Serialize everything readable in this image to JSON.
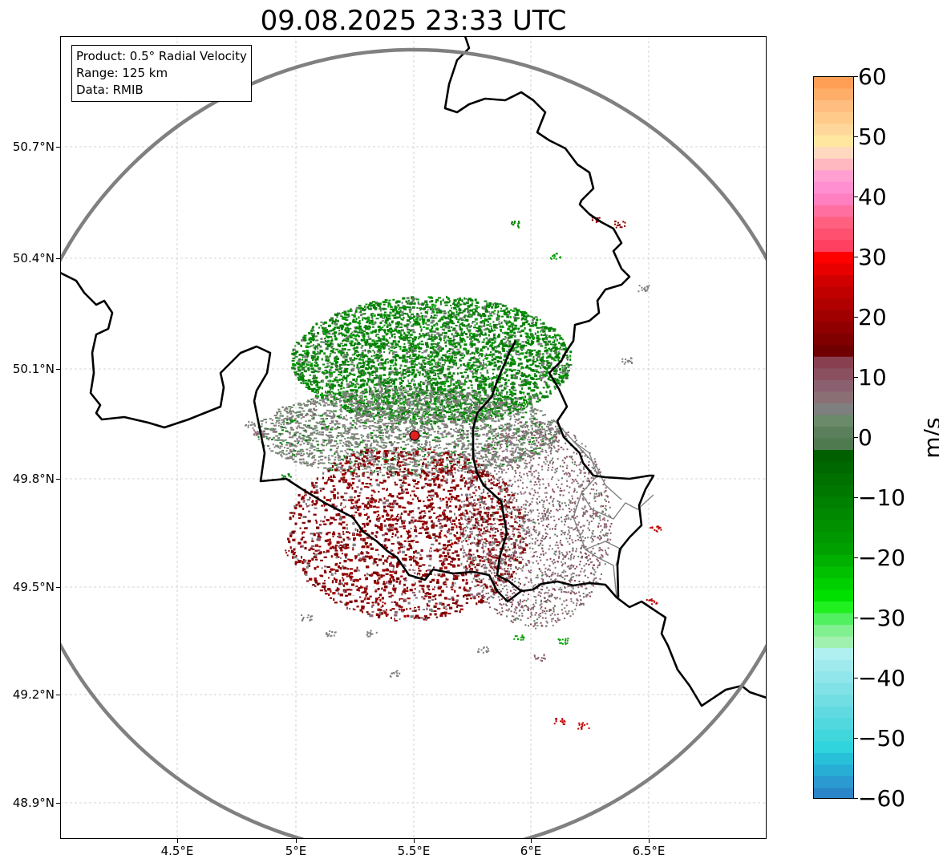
{
  "title": "09.08.2025 23:33 UTC",
  "info_box": {
    "line1": "Product: 0.5° Radial Velocity",
    "line2": "Range: 125 km",
    "line3": "Data: RMIB"
  },
  "axes": {
    "lat_labels": [
      "50.7°N",
      "50.4°N",
      "50.1°N",
      "49.8°N",
      "49.5°N",
      "49.2°N",
      "48.9°N"
    ],
    "lon_labels": [
      "4.5°E",
      "5°E",
      "5.5°E",
      "6°E",
      "6.5°E"
    ],
    "grid": true
  },
  "colorbar": {
    "unit": "m/s",
    "tick_labels": [
      "60",
      "50",
      "40",
      "30",
      "20",
      "10",
      "0",
      "−10",
      "−20",
      "−30",
      "−40",
      "−50",
      "−60"
    ],
    "range": [
      -60,
      60
    ]
  },
  "radar": {
    "range_km": 125,
    "site_marker_color": "#e02020",
    "range_ring_color": "#808080"
  },
  "colors": {
    "inbound_strong": "#00a000",
    "inbound": "#008000",
    "near_zero": "#7f7f7f",
    "outbound": "#8b0000",
    "outbound_strong": "#c00000"
  }
}
